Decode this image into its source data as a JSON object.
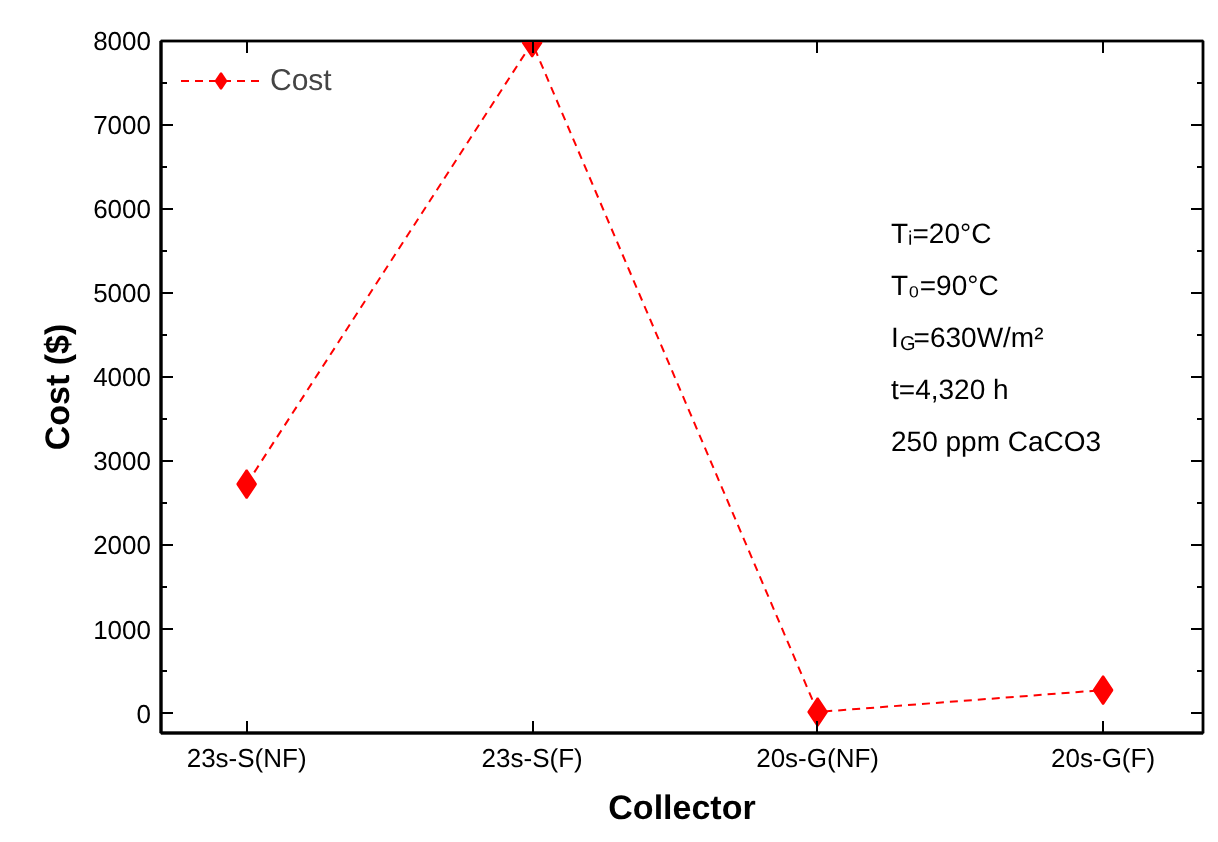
{
  "chart_data": {
    "type": "line",
    "xlabel": "Collector",
    "ylabel": "Cost ($)",
    "categories": [
      "23s-S(NF)",
      "23s-S(F)",
      "20s-G(NF)",
      "20s-G(F)"
    ],
    "series": [
      {
        "name": "Cost",
        "color": "#ff0000",
        "values": [
          2730,
          7980,
          20,
          280
        ]
      }
    ],
    "ylim": [
      -230,
      8000
    ],
    "yticks": [
      0,
      1000,
      2000,
      3000,
      4000,
      5000,
      6000,
      7000,
      8000
    ],
    "marker": "diamond",
    "line_style": "dashed",
    "legend": "top left",
    "grid": false,
    "annotations": [
      "Tᵢ=20°C",
      "T₀=90°C",
      "I$_{G}$=630W/m²",
      "t=4,320 h",
      "250 ppm CaCO3"
    ]
  }
}
